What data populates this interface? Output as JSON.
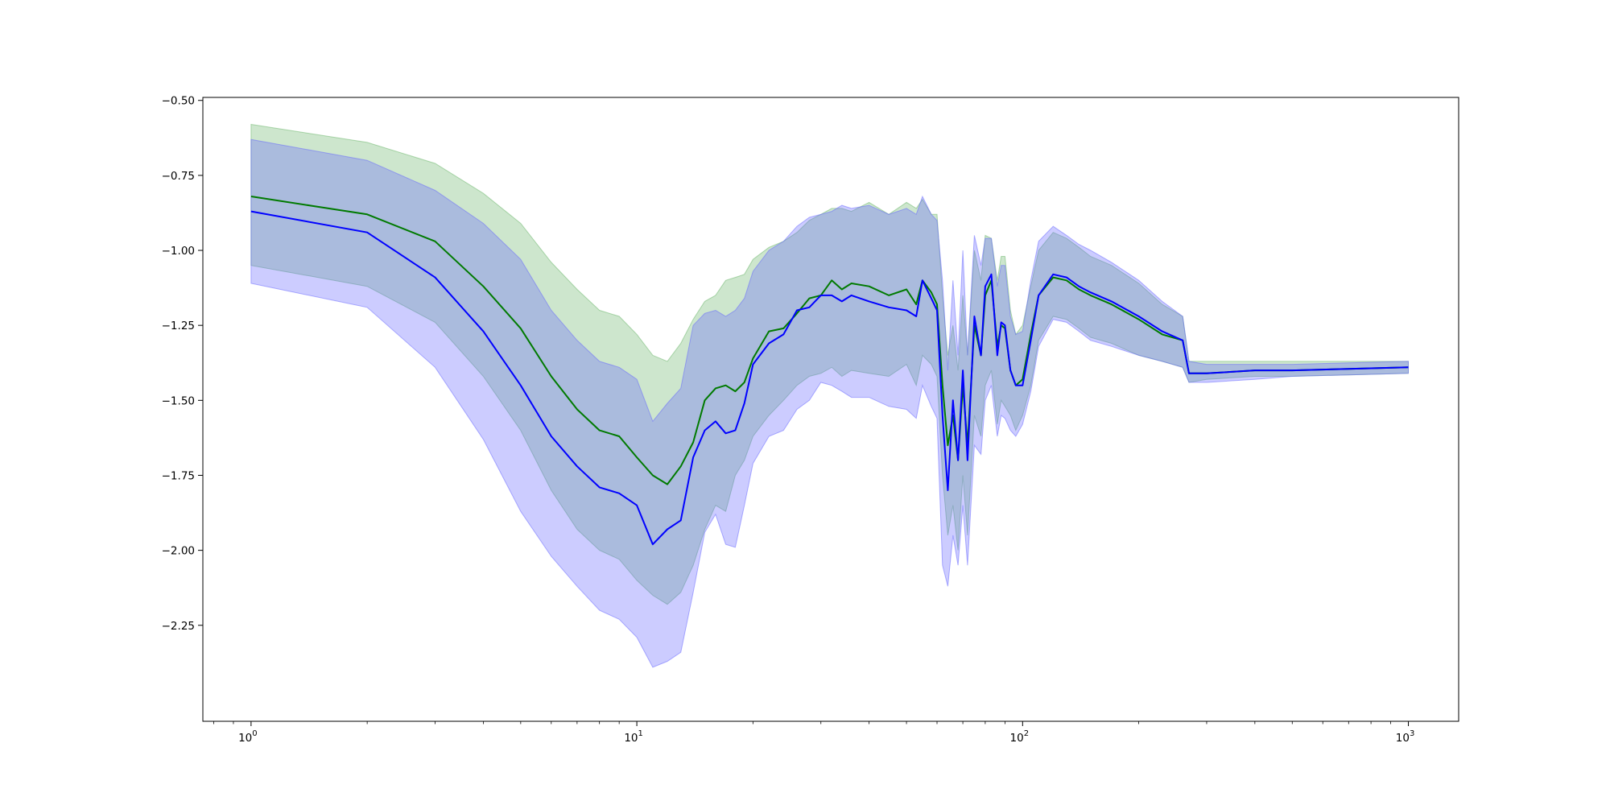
{
  "chart_data": {
    "type": "line",
    "title": "",
    "xlabel": "",
    "ylabel": "",
    "xscale": "log",
    "xlim": [
      0.75,
      1350
    ],
    "ylim": [
      -2.57,
      -0.49
    ],
    "grid": false,
    "legend": "none",
    "x_ticks": [
      {
        "value": 1,
        "base": "10",
        "exp": "0"
      },
      {
        "value": 10,
        "base": "10",
        "exp": "1"
      },
      {
        "value": 100,
        "base": "10",
        "exp": "2"
      },
      {
        "value": 1000,
        "base": "10",
        "exp": "3"
      }
    ],
    "y_ticks": [
      {
        "value": -0.5,
        "label": "−0.50"
      },
      {
        "value": -0.75,
        "label": "−0.75"
      },
      {
        "value": -1.0,
        "label": "−1.00"
      },
      {
        "value": -1.25,
        "label": "−1.25"
      },
      {
        "value": -1.5,
        "label": "−1.50"
      },
      {
        "value": -1.75,
        "label": "−1.75"
      },
      {
        "value": -2.0,
        "label": "−2.00"
      },
      {
        "value": -2.25,
        "label": "−2.25"
      }
    ],
    "colors": {
      "green_line": "#007a00",
      "blue_line": "#0000ff",
      "green_band": "#66b366",
      "blue_band": "#6464ff",
      "green_band_opacity": 0.33,
      "blue_band_opacity": 0.33
    },
    "series": [
      {
        "color": "green",
        "x": [
          1,
          2,
          3,
          4,
          5,
          6,
          7,
          8,
          9,
          10,
          11,
          12,
          13,
          14,
          15,
          16,
          17,
          18,
          19,
          20,
          22,
          24,
          26,
          28,
          30,
          32,
          34,
          36,
          40,
          45,
          50,
          53,
          55,
          58,
          60,
          62,
          64,
          66,
          68,
          70,
          72,
          75,
          78,
          80,
          83,
          86,
          88,
          90,
          93,
          96,
          100,
          105,
          110,
          120,
          130,
          140,
          150,
          170,
          200,
          230,
          260,
          270,
          300,
          400,
          500,
          700,
          1000
        ],
        "y": [
          -0.82,
          -0.88,
          -0.97,
          -1.12,
          -1.26,
          -1.42,
          -1.53,
          -1.6,
          -1.62,
          -1.69,
          -1.75,
          -1.78,
          -1.72,
          -1.64,
          -1.5,
          -1.46,
          -1.45,
          -1.47,
          -1.44,
          -1.36,
          -1.27,
          -1.26,
          -1.21,
          -1.16,
          -1.15,
          -1.1,
          -1.13,
          -1.11,
          -1.12,
          -1.15,
          -1.13,
          -1.18,
          -1.1,
          -1.14,
          -1.18,
          -1.45,
          -1.65,
          -1.55,
          -1.7,
          -1.45,
          -1.65,
          -1.25,
          -1.35,
          -1.15,
          -1.1,
          -1.32,
          -1.25,
          -1.26,
          -1.4,
          -1.45,
          -1.43,
          -1.28,
          -1.15,
          -1.09,
          -1.1,
          -1.13,
          -1.15,
          -1.18,
          -1.23,
          -1.28,
          -1.3,
          -1.41,
          -1.41,
          -1.4,
          -1.4,
          -1.395,
          -1.39
        ],
        "lower": [
          -1.05,
          -1.12,
          -1.24,
          -1.42,
          -1.6,
          -1.8,
          -1.93,
          -2.0,
          -2.03,
          -2.1,
          -2.15,
          -2.18,
          -2.14,
          -2.05,
          -1.93,
          -1.85,
          -1.87,
          -1.75,
          -1.7,
          -1.62,
          -1.55,
          -1.5,
          -1.45,
          -1.42,
          -1.41,
          -1.39,
          -1.42,
          -1.4,
          -1.41,
          -1.42,
          -1.38,
          -1.45,
          -1.35,
          -1.38,
          -1.42,
          -1.75,
          -1.95,
          -1.85,
          -2.0,
          -1.75,
          -1.95,
          -1.55,
          -1.62,
          -1.45,
          -1.4,
          -1.58,
          -1.5,
          -1.52,
          -1.55,
          -1.6,
          -1.55,
          -1.45,
          -1.3,
          -1.22,
          -1.23,
          -1.26,
          -1.29,
          -1.31,
          -1.35,
          -1.37,
          -1.39,
          -1.44,
          -1.43,
          -1.42,
          -1.42,
          -1.415,
          -1.41
        ],
        "upper": [
          -0.58,
          -0.64,
          -0.71,
          -0.81,
          -0.91,
          -1.04,
          -1.13,
          -1.2,
          -1.22,
          -1.28,
          -1.35,
          -1.37,
          -1.31,
          -1.23,
          -1.17,
          -1.15,
          -1.1,
          -1.09,
          -1.08,
          -1.03,
          -0.99,
          -0.97,
          -0.94,
          -0.9,
          -0.88,
          -0.86,
          -0.86,
          -0.87,
          -0.84,
          -0.88,
          -0.84,
          -0.86,
          -0.83,
          -0.88,
          -0.88,
          -1.15,
          -1.35,
          -1.25,
          -1.4,
          -1.15,
          -1.35,
          -1.0,
          -1.1,
          -0.95,
          -0.96,
          -1.1,
          -1.02,
          -1.02,
          -1.2,
          -1.28,
          -1.25,
          -1.12,
          -1.0,
          -0.94,
          -0.96,
          -0.99,
          -1.02,
          -1.05,
          -1.11,
          -1.18,
          -1.22,
          -1.37,
          -1.37,
          -1.37,
          -1.37,
          -1.37,
          -1.37
        ]
      },
      {
        "color": "blue",
        "x": [
          1,
          2,
          3,
          4,
          5,
          6,
          7,
          8,
          9,
          10,
          11,
          12,
          13,
          14,
          15,
          16,
          17,
          18,
          19,
          20,
          22,
          24,
          26,
          28,
          30,
          32,
          34,
          36,
          40,
          45,
          50,
          53,
          55,
          58,
          60,
          62,
          64,
          66,
          68,
          70,
          72,
          75,
          78,
          80,
          83,
          86,
          88,
          90,
          93,
          96,
          100,
          105,
          110,
          120,
          130,
          140,
          150,
          170,
          200,
          230,
          260,
          270,
          300,
          400,
          500,
          700,
          1000
        ],
        "y": [
          -0.87,
          -0.94,
          -1.09,
          -1.27,
          -1.45,
          -1.62,
          -1.72,
          -1.79,
          -1.81,
          -1.85,
          -1.98,
          -1.93,
          -1.9,
          -1.69,
          -1.6,
          -1.57,
          -1.61,
          -1.6,
          -1.51,
          -1.38,
          -1.31,
          -1.28,
          -1.2,
          -1.19,
          -1.15,
          -1.15,
          -1.17,
          -1.15,
          -1.17,
          -1.19,
          -1.2,
          -1.22,
          -1.1,
          -1.16,
          -1.2,
          -1.55,
          -1.8,
          -1.5,
          -1.7,
          -1.4,
          -1.7,
          -1.22,
          -1.35,
          -1.12,
          -1.08,
          -1.35,
          -1.24,
          -1.25,
          -1.4,
          -1.45,
          -1.45,
          -1.3,
          -1.15,
          -1.08,
          -1.09,
          -1.12,
          -1.14,
          -1.17,
          -1.22,
          -1.27,
          -1.3,
          -1.41,
          -1.41,
          -1.4,
          -1.4,
          -1.395,
          -1.39
        ],
        "lower": [
          -1.11,
          -1.19,
          -1.39,
          -1.63,
          -1.87,
          -2.02,
          -2.12,
          -2.2,
          -2.23,
          -2.29,
          -2.39,
          -2.37,
          -2.34,
          -2.14,
          -1.94,
          -1.88,
          -1.98,
          -1.99,
          -1.85,
          -1.71,
          -1.62,
          -1.6,
          -1.53,
          -1.5,
          -1.44,
          -1.45,
          -1.47,
          -1.49,
          -1.49,
          -1.52,
          -1.53,
          -1.56,
          -1.45,
          -1.52,
          -1.56,
          -2.05,
          -2.12,
          -1.95,
          -2.05,
          -1.85,
          -2.05,
          -1.65,
          -1.68,
          -1.5,
          -1.45,
          -1.62,
          -1.55,
          -1.56,
          -1.6,
          -1.62,
          -1.58,
          -1.47,
          -1.32,
          -1.23,
          -1.24,
          -1.27,
          -1.3,
          -1.32,
          -1.35,
          -1.37,
          -1.39,
          -1.44,
          -1.44,
          -1.43,
          -1.42,
          -1.415,
          -1.41
        ],
        "upper": [
          -0.63,
          -0.7,
          -0.8,
          -0.91,
          -1.03,
          -1.2,
          -1.3,
          -1.37,
          -1.39,
          -1.43,
          -1.57,
          -1.51,
          -1.46,
          -1.25,
          -1.21,
          -1.2,
          -1.22,
          -1.2,
          -1.16,
          -1.07,
          -1.0,
          -0.97,
          -0.92,
          -0.89,
          -0.88,
          -0.87,
          -0.85,
          -0.86,
          -0.85,
          -0.88,
          -0.86,
          -0.88,
          -0.82,
          -0.88,
          -0.9,
          -1.1,
          -1.4,
          -1.1,
          -1.35,
          -1.0,
          -1.35,
          -0.95,
          -1.05,
          -0.96,
          -0.96,
          -1.12,
          -1.05,
          -1.05,
          -1.22,
          -1.28,
          -1.27,
          -1.1,
          -0.97,
          -0.92,
          -0.95,
          -0.98,
          -1.0,
          -1.04,
          -1.1,
          -1.17,
          -1.22,
          -1.37,
          -1.38,
          -1.38,
          -1.38,
          -1.375,
          -1.37
        ]
      }
    ]
  }
}
